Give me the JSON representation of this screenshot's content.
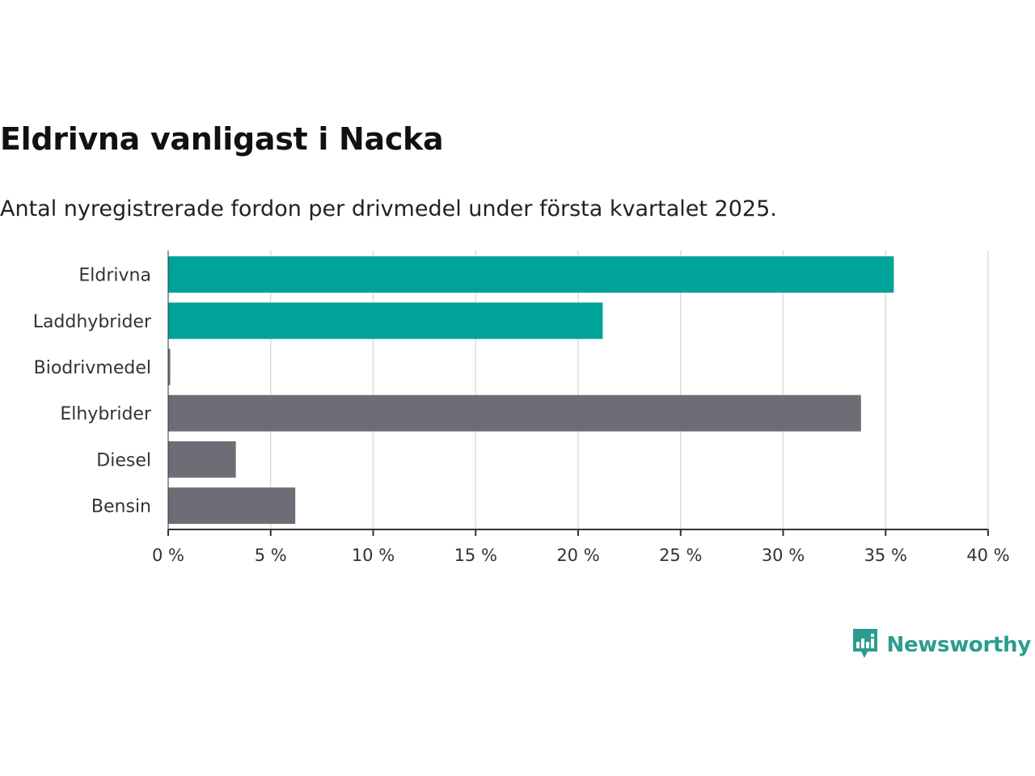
{
  "chart_data": {
    "type": "bar",
    "orientation": "horizontal",
    "title": "Eldrivna vanligast i Nacka",
    "subtitle": "Antal nyregistrerade fordon per drivmedel under första kvartalet 2025.",
    "xlabel": "",
    "ylabel": "",
    "categories": [
      "Eldrivna",
      "Laddhybrider",
      "Biodrivmedel",
      "Elhybrider",
      "Diesel",
      "Bensin"
    ],
    "values": [
      35.4,
      21.2,
      0.1,
      33.8,
      3.3,
      6.2
    ],
    "highlighted": [
      true,
      true,
      false,
      false,
      false,
      false
    ],
    "colors": {
      "highlight": "#00a398",
      "default": "#6d6d75",
      "grid": "#dddddd",
      "axis": "#333333"
    },
    "xlim": [
      0,
      40
    ],
    "x_ticks": [
      0,
      5,
      10,
      15,
      20,
      25,
      30,
      35,
      40
    ],
    "x_tick_labels": [
      "0 %",
      "5 %",
      "10 %",
      "15 %",
      "20 %",
      "25 %",
      "30 %",
      "35 %",
      "40 %"
    ],
    "grid": "vertical",
    "legend": "none"
  },
  "brand": {
    "name": "Newsworthy",
    "icon": "newsworthy-logo-icon",
    "color": "#2a9d8f"
  }
}
